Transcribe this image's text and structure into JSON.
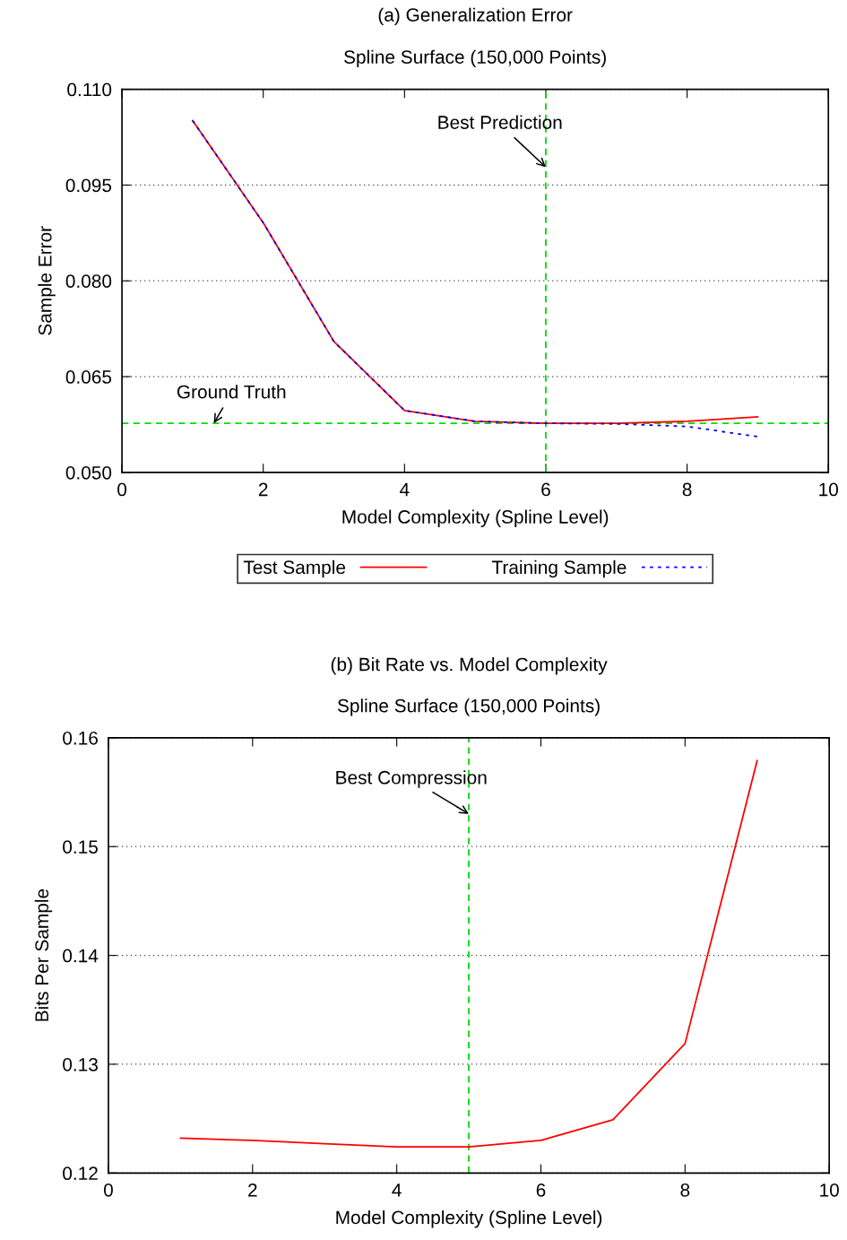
{
  "chart_data": [
    {
      "type": "line",
      "title": "(a) Generalization Error",
      "subtitle": "Spline Surface (150,000 Points)",
      "xlabel": "Model Complexity (Spline Level)",
      "ylabel": "Sample Error",
      "x": [
        1,
        2,
        3,
        4,
        5,
        6,
        7,
        8,
        9
      ],
      "series": [
        {
          "name": "Test Sample",
          "color": "#ff0000",
          "line_style": "solid",
          "values": [
            0.1051,
            0.0891,
            0.0705,
            0.0597,
            0.058,
            0.0577,
            0.0577,
            0.058,
            0.0587
          ]
        },
        {
          "name": "Training Sample",
          "color": "#0000ff",
          "line_style": "dotted",
          "values": [
            0.1051,
            0.0891,
            0.0705,
            0.0597,
            0.058,
            0.0577,
            0.0576,
            0.0572,
            0.0556
          ]
        }
      ],
      "xlim": [
        0,
        10
      ],
      "xticks": [
        0,
        2,
        4,
        6,
        8,
        10
      ],
      "ylim": [
        0.05,
        0.11
      ],
      "yticks": [
        {
          "value": 0.05,
          "label": "0.050"
        },
        {
          "value": 0.065,
          "label": "0.065"
        },
        {
          "value": 0.08,
          "label": "0.080"
        },
        {
          "value": 0.095,
          "label": "0.095"
        },
        {
          "value": 0.11,
          "label": "0.110"
        }
      ],
      "grid": "y",
      "legend": "bottom",
      "marker": "none",
      "ref_lines": [
        {
          "axis": "y",
          "value": 0.0577,
          "color": "#00dd00",
          "line_style": "dashed"
        },
        {
          "axis": "x",
          "value": 6,
          "color": "#00dd00",
          "line_style": "dashed"
        }
      ],
      "annotations": [
        {
          "text": "Best Prediction",
          "x": 6,
          "y": 0.0978
        },
        {
          "text": "Ground Truth",
          "x": 1.3,
          "y": 0.0577
        }
      ]
    },
    {
      "type": "line",
      "title": "(b) Bit Rate vs. Model Complexity",
      "subtitle": "Spline Surface (150,000 Points)",
      "xlabel": "Model Complexity (Spline Level)",
      "ylabel": "Bits Per Sample",
      "x": [
        1,
        2,
        3,
        4,
        5,
        6,
        7,
        8,
        9
      ],
      "series": [
        {
          "color": "#ff0000",
          "line_style": "solid",
          "values": [
            0.1232,
            0.123,
            0.1227,
            0.1224,
            0.1224,
            0.123,
            0.1249,
            0.1319,
            0.1579
          ]
        }
      ],
      "xlim": [
        0,
        10
      ],
      "xticks": [
        0,
        2,
        4,
        6,
        8,
        10
      ],
      "ylim": [
        0.12,
        0.16
      ],
      "yticks": [
        0.12,
        0.13,
        0.14,
        0.15,
        0.16
      ],
      "grid": "y",
      "marker": "none",
      "ref_lines": [
        {
          "axis": "x",
          "value": 5,
          "color": "#00dd00",
          "line_style": "dashed"
        }
      ],
      "annotations": [
        {
          "text": "Best Compression",
          "x": 5,
          "y": 0.153
        }
      ]
    }
  ]
}
